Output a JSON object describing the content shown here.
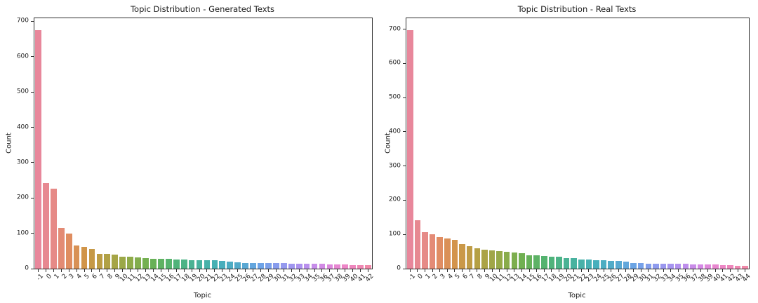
{
  "figure": {
    "background": "#ffffff",
    "text_color": "#1a1a1a",
    "spine_color": "#2e2e2e"
  },
  "chart_data": [
    {
      "type": "bar",
      "title": "Topic Distribution - Generated Texts",
      "xlabel": "Topic",
      "ylabel": "Count",
      "grid": false,
      "legend": false,
      "ylim": [
        0,
        708.75
      ],
      "yticks": [
        0,
        100,
        200,
        300,
        400,
        500,
        600,
        700
      ],
      "categories": [
        "-1",
        "0",
        "1",
        "2",
        "3",
        "4",
        "5",
        "6",
        "7",
        "8",
        "9",
        "10",
        "11",
        "12",
        "13",
        "14",
        "15",
        "16",
        "17",
        "18",
        "19",
        "20",
        "21",
        "22",
        "23",
        "24",
        "25",
        "26",
        "27",
        "28",
        "29",
        "30",
        "31",
        "32",
        "33",
        "34",
        "35",
        "36",
        "37",
        "38",
        "39",
        "40",
        "41",
        "42"
      ],
      "values": [
        675,
        243,
        226,
        116,
        100,
        66,
        62,
        56,
        42,
        42,
        40,
        33,
        33,
        31,
        30,
        28,
        27,
        27,
        25,
        25,
        24,
        24,
        24,
        23,
        22,
        20,
        17,
        16,
        15,
        15,
        15,
        15,
        15,
        14,
        14,
        14,
        14,
        13,
        12,
        11,
        11,
        10,
        10,
        9
      ]
    },
    {
      "type": "bar",
      "title": "Topic Distribution - Real Texts",
      "xlabel": "Topic",
      "ylabel": "Count",
      "grid": false,
      "legend": false,
      "ylim": [
        0,
        731.85
      ],
      "yticks": [
        0,
        100,
        200,
        300,
        400,
        500,
        600,
        700
      ],
      "categories": [
        "-1",
        "0",
        "1",
        "2",
        "3",
        "4",
        "5",
        "6",
        "7",
        "8",
        "9",
        "10",
        "11",
        "12",
        "13",
        "14",
        "15",
        "16",
        "17",
        "18",
        "19",
        "20",
        "21",
        "22",
        "23",
        "24",
        "25",
        "26",
        "27",
        "28",
        "29",
        "30",
        "31",
        "32",
        "33",
        "34",
        "35",
        "36",
        "37",
        "38",
        "39",
        "40",
        "41",
        "42",
        "43",
        "44"
      ],
      "values": [
        697,
        141,
        106,
        100,
        92,
        88,
        85,
        71,
        65,
        59,
        56,
        53,
        51,
        49,
        47,
        45,
        38,
        38,
        36,
        35,
        34,
        30,
        30,
        27,
        26,
        24,
        24,
        23,
        22,
        20,
        17,
        16,
        15,
        15,
        15,
        15,
        15,
        14,
        13,
        13,
        13,
        12,
        11,
        10,
        9,
        9
      ]
    }
  ],
  "palette_anchors": [
    {
      "t": 0.0,
      "c": "#e8879b"
    },
    {
      "t": 0.05,
      "c": "#e68a85"
    },
    {
      "t": 0.09,
      "c": "#e08d62"
    },
    {
      "t": 0.14,
      "c": "#d19549"
    },
    {
      "t": 0.2,
      "c": "#b5a044"
    },
    {
      "t": 0.27,
      "c": "#94aa48"
    },
    {
      "t": 0.34,
      "c": "#6cb153"
    },
    {
      "t": 0.41,
      "c": "#50b374"
    },
    {
      "t": 0.48,
      "c": "#48b29b"
    },
    {
      "t": 0.55,
      "c": "#47afba"
    },
    {
      "t": 0.61,
      "c": "#53aacb"
    },
    {
      "t": 0.67,
      "c": "#6ca4e6"
    },
    {
      "t": 0.73,
      "c": "#8c9bee"
    },
    {
      "t": 0.8,
      "c": "#b291ef"
    },
    {
      "t": 0.87,
      "c": "#d789e4"
    },
    {
      "t": 0.92,
      "c": "#ec86cb"
    },
    {
      "t": 1.0,
      "c": "#f089a9"
    }
  ]
}
